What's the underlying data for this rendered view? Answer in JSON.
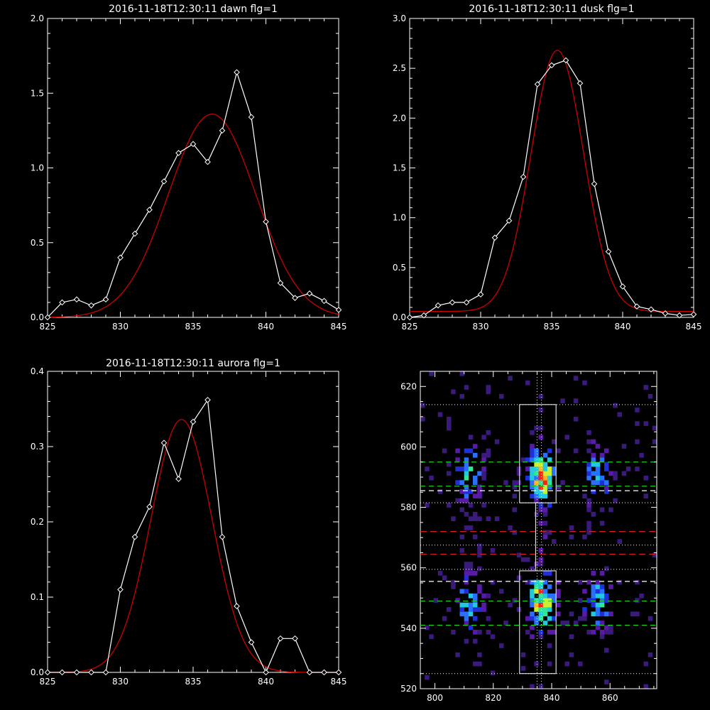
{
  "colors": {
    "background": "#000000",
    "data_line": "#ffffff",
    "fit_line": "#cc0000",
    "green_dash": "#22cc22",
    "red_dash": "#cc2222",
    "white_dash": "#ffffff"
  },
  "chart_data": [
    {
      "id": "dawn",
      "type": "line",
      "title": "2016-11-18T12:30:11 dawn flg=1",
      "xlim": [
        825,
        845
      ],
      "ylim": [
        0,
        2.0
      ],
      "xticks": [
        "825",
        "830",
        "835",
        "840",
        "845"
      ],
      "yticks": [
        "0.0",
        "0.5",
        "1.0",
        "1.5",
        "2.0"
      ],
      "series": [
        {
          "role": "data",
          "marker": "diamond",
          "x": [
            825,
            826,
            827,
            828,
            829,
            830,
            831,
            832,
            833,
            834,
            835,
            836,
            837,
            838,
            839,
            840,
            841,
            842,
            843,
            844,
            845
          ],
          "y": [
            0.0,
            0.1,
            0.12,
            0.08,
            0.12,
            0.4,
            0.56,
            0.72,
            0.91,
            1.1,
            1.16,
            1.04,
            1.25,
            1.64,
            1.34,
            0.64,
            0.23,
            0.13,
            0.16,
            0.11,
            0.05
          ]
        },
        {
          "role": "fit",
          "gaussian": {
            "amplitude": 1.36,
            "center": 836.3,
            "sigma": 3.0,
            "offset": 0.0
          }
        }
      ]
    },
    {
      "id": "dusk",
      "type": "line",
      "title": "2016-11-18T12:30:11 dusk flg=1",
      "xlim": [
        825,
        845
      ],
      "ylim": [
        0,
        3.0
      ],
      "xticks": [
        "825",
        "830",
        "835",
        "840",
        "845"
      ],
      "yticks": [
        "0.0",
        "0.5",
        "1.0",
        "1.5",
        "2.0",
        "2.5",
        "3.0"
      ],
      "series": [
        {
          "role": "data",
          "marker": "diamond",
          "x": [
            825,
            826,
            827,
            828,
            829,
            830,
            831,
            832,
            833,
            834,
            835,
            836,
            837,
            838,
            839,
            840,
            841,
            842,
            843,
            844,
            845
          ],
          "y": [
            0.0,
            0.02,
            0.12,
            0.15,
            0.15,
            0.23,
            0.8,
            0.97,
            1.41,
            2.34,
            2.53,
            2.58,
            2.35,
            1.34,
            0.66,
            0.31,
            0.11,
            0.08,
            0.04,
            0.02,
            0.03
          ]
        },
        {
          "role": "fit",
          "gaussian": {
            "amplitude": 2.62,
            "center": 835.4,
            "sigma": 1.85,
            "offset": 0.06
          }
        }
      ]
    },
    {
      "id": "aurora",
      "type": "line",
      "title": "2016-11-18T12:30:11 aurora flg=1",
      "xlim": [
        825,
        845
      ],
      "ylim": [
        0,
        0.4
      ],
      "xticks": [
        "825",
        "830",
        "835",
        "840",
        "845"
      ],
      "yticks": [
        "0.0",
        "0.1",
        "0.2",
        "0.3",
        "0.4"
      ],
      "series": [
        {
          "role": "data",
          "marker": "diamond",
          "x": [
            825,
            826,
            827,
            828,
            829,
            830,
            831,
            832,
            833,
            834,
            835,
            836,
            837,
            838,
            839,
            840,
            841,
            842,
            843,
            844,
            845
          ],
          "y": [
            0.0,
            0.0,
            0.0,
            0.0,
            0.0,
            0.11,
            0.18,
            0.22,
            0.305,
            0.257,
            0.333,
            0.362,
            0.18,
            0.088,
            0.04,
            0.0,
            0.045,
            0.045,
            0.0,
            0.0,
            0.0
          ]
        },
        {
          "role": "fit",
          "gaussian": {
            "amplitude": 0.336,
            "center": 834.2,
            "sigma": 2.1,
            "offset": 0.0
          }
        }
      ]
    },
    {
      "id": "image",
      "type": "heatmap",
      "title": "",
      "xlim": [
        795,
        876
      ],
      "ylim": [
        520,
        625
      ],
      "xticks": [
        "800",
        "820",
        "840",
        "860"
      ],
      "yticks": [
        "520",
        "540",
        "560",
        "580",
        "600",
        "620"
      ],
      "columns_x": [
        811,
        836,
        855
      ],
      "bright_rows_y": [
        590,
        548
      ],
      "dotted_vertical_x": [
        835,
        836.5
      ],
      "dotted_horizontal_y": [
        614,
        581.5,
        567.5,
        559.5,
        525
      ],
      "green_dashed_y": [
        595,
        587,
        549,
        541
      ],
      "white_dashed_y": [
        585.5,
        555.5
      ],
      "red_dashed_y": [
        572,
        564.5
      ],
      "boxes": [
        {
          "x0": 829,
          "x1": 841.5,
          "y0": 581.5,
          "y1": 614
        },
        {
          "x0": 829,
          "x1": 841.5,
          "y0": 525,
          "y1": 559
        }
      ]
    }
  ]
}
